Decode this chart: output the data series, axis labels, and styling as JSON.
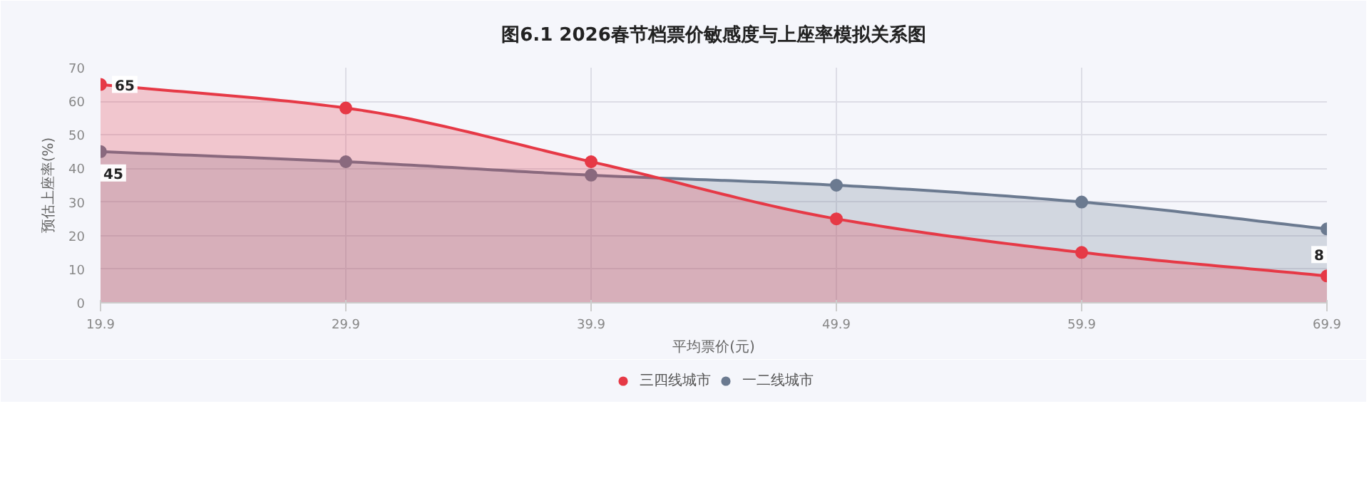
{
  "chart_data": {
    "type": "area",
    "title": "图6.1 2026春节档票价敏感度与上座率模拟关系图",
    "xlabel": "平均票价(元)",
    "ylabel": "预估上座率(%)",
    "x": [
      19.9,
      29.9,
      39.9,
      49.9,
      59.9,
      69.9
    ],
    "xlim": [
      19.9,
      69.9
    ],
    "xticks": [
      19.9,
      29.9,
      39.9,
      49.9,
      59.9,
      69.9
    ],
    "ylim": [
      0,
      70
    ],
    "yticks": [
      0,
      10,
      20,
      30,
      40,
      50,
      60,
      70
    ],
    "series": [
      {
        "name": "三四线城市",
        "color": "#e63946",
        "values": [
          65,
          58,
          42,
          25,
          15,
          8
        ],
        "value_labels": [
          "65",
          null,
          null,
          null,
          null,
          "8"
        ]
      },
      {
        "name": "一二线城市",
        "color": "#6b7a90",
        "values": [
          45,
          42,
          38,
          35,
          30,
          22
        ],
        "value_labels": [
          "45",
          null,
          null,
          null,
          null,
          null
        ]
      }
    ],
    "grid": true,
    "legend": "bottom",
    "marker": "circle",
    "line_style": "solid"
  }
}
